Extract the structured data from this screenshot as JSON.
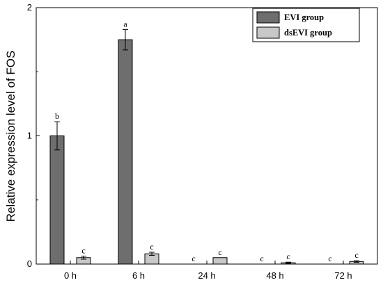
{
  "chart_data": {
    "type": "bar",
    "title": "",
    "xlabel": "",
    "ylabel": "Relative expression level of FOS",
    "ylim": [
      0,
      2
    ],
    "yticks": [
      "0",
      "1",
      "2"
    ],
    "categories": [
      "0 h",
      "6 h",
      "24 h",
      "48 h",
      "72 h"
    ],
    "legend_position": "top-right",
    "series": [
      {
        "name": "EVI group",
        "color": "#6e6e6e",
        "values": [
          1.0,
          1.75,
          0.0,
          0.0,
          0.0
        ],
        "errors": [
          0.11,
          0.08,
          0.0,
          0.0,
          0.0
        ],
        "labels": [
          "b",
          "a",
          "c",
          "c",
          "c"
        ]
      },
      {
        "name": "dsEVI group",
        "color": "#c8c8c8",
        "values": [
          0.05,
          0.08,
          0.05,
          0.01,
          0.02
        ],
        "errors": [
          0.012,
          0.012,
          0.0,
          0.005,
          0.006
        ],
        "labels": [
          "c",
          "c",
          "c",
          "c",
          "c"
        ]
      }
    ]
  }
}
